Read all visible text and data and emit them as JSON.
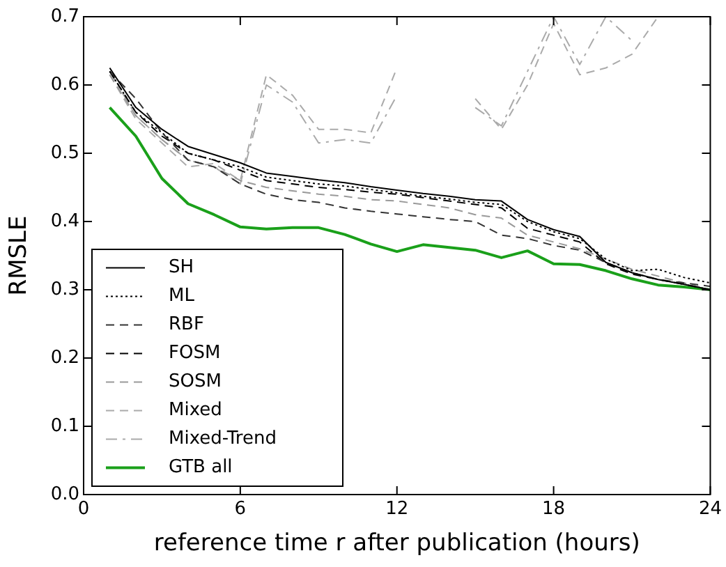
{
  "chart_data": {
    "type": "line",
    "xlabel": "reference time r after publication (hours)",
    "ylabel": "RMSLE",
    "x": [
      1,
      2,
      3,
      4,
      5,
      6,
      7,
      8,
      9,
      10,
      11,
      12,
      13,
      14,
      15,
      16,
      17,
      18,
      19,
      20,
      21,
      22,
      23,
      24
    ],
    "xlim": [
      0,
      24
    ],
    "xticks": [
      0,
      6,
      12,
      18,
      24
    ],
    "ylim": [
      0,
      0.7
    ],
    "yticks": [
      {
        "value": 0,
        "label": "0.0"
      },
      0.1,
      0.2,
      0.3,
      0.4,
      0.5,
      0.6,
      0.7
    ],
    "grid": false,
    "legend": "bottom left",
    "marker": "none",
    "series": [
      {
        "name": "SH",
        "color": "#000000",
        "line_style": "solid",
        "values": [
          0.625,
          0.567,
          0.535,
          0.51,
          0.498,
          0.486,
          0.471,
          0.466,
          0.461,
          0.457,
          0.451,
          0.446,
          0.441,
          0.437,
          0.432,
          0.43,
          0.403,
          0.388,
          0.378,
          0.34,
          0.325,
          0.315,
          0.308,
          0.3
        ]
      },
      {
        "name": "ML",
        "color": "#000000",
        "line_style": "dotted",
        "values": [
          0.62,
          0.56,
          0.53,
          0.5,
          0.49,
          0.48,
          0.465,
          0.46,
          0.455,
          0.452,
          0.447,
          0.442,
          0.437,
          0.433,
          0.428,
          0.425,
          0.4,
          0.385,
          0.375,
          0.345,
          0.328,
          0.33,
          0.318,
          0.31
        ]
      },
      {
        "name": "RBF",
        "color": "#333333",
        "line_style": "dashed",
        "values": [
          0.62,
          0.58,
          0.53,
          0.49,
          0.48,
          0.455,
          0.44,
          0.432,
          0.428,
          0.42,
          0.415,
          0.411,
          0.407,
          0.403,
          0.4,
          0.38,
          0.375,
          0.365,
          0.358,
          0.34,
          0.325,
          0.315,
          0.31,
          0.305
        ]
      },
      {
        "name": "FOSM",
        "color": "#000000",
        "line_style": "dashed",
        "values": [
          0.62,
          0.56,
          0.525,
          0.5,
          0.49,
          0.475,
          0.46,
          0.455,
          0.45,
          0.447,
          0.443,
          0.44,
          0.435,
          0.43,
          0.425,
          0.42,
          0.39,
          0.38,
          0.37,
          0.338,
          0.323,
          0.315,
          0.308,
          0.3
        ]
      },
      {
        "name": "SOSM",
        "color": "#999999",
        "line_style": "dashed",
        "values": [
          0.615,
          0.555,
          0.52,
          0.49,
          0.48,
          0.46,
          0.45,
          0.445,
          0.44,
          0.437,
          0.432,
          0.43,
          0.425,
          0.42,
          0.41,
          0.405,
          0.38,
          0.37,
          0.36,
          0.345,
          0.33,
          0.32,
          0.31,
          0.3
        ]
      },
      {
        "name": "Mixed",
        "color": "#aaaaaa",
        "line_style": "dashed",
        "values": [
          0.615,
          0.55,
          0.515,
          0.48,
          0.485,
          0.46,
          0.615,
          0.585,
          0.535,
          0.535,
          0.53,
          0.625,
          null,
          null,
          0.58,
          0.535,
          0.6,
          0.69,
          0.615,
          0.625,
          0.645,
          0.7,
          null,
          null
        ]
      },
      {
        "name": "Mixed-Trend",
        "color": "#aaaaaa",
        "line_style": "dashdot",
        "values": [
          0.62,
          0.555,
          0.52,
          0.49,
          0.48,
          0.455,
          0.6,
          0.575,
          0.515,
          0.52,
          0.515,
          0.585,
          null,
          null,
          0.567,
          0.54,
          0.62,
          0.7,
          0.63,
          0.7,
          0.665,
          null,
          null,
          null
        ]
      },
      {
        "name": "GTB all",
        "color": "#1aa01a",
        "line_style": "solid",
        "values": [
          0.567,
          0.525,
          0.463,
          0.426,
          0.41,
          0.392,
          0.389,
          0.391,
          0.391,
          0.381,
          0.367,
          0.356,
          0.366,
          0.362,
          0.358,
          0.347,
          0.357,
          0.338,
          0.337,
          0.328,
          0.316,
          0.307,
          0.304,
          0.3
        ]
      }
    ]
  }
}
